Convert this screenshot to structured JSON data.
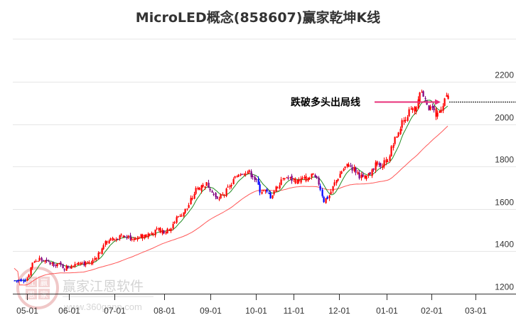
{
  "title": "MicroLED概念(858607)赢家乾坤K线",
  "annotation": {
    "label": "跌破多头出局线",
    "color": "#e8307a",
    "level": 2105
  },
  "watermark": {
    "brand": "赢家江恩软件",
    "url": "www.360gann.com",
    "seal_chars": [
      "江",
      "赢",
      "恩",
      "家"
    ]
  },
  "colors": {
    "up": "#ff0000",
    "down_blue": "#0000ff",
    "down_purple": "#800080",
    "ma_short": "#228b22",
    "ma_long": "#ff3b3b",
    "grid": "#e6e6e6",
    "axis": "#333333"
  },
  "chart_data": {
    "type": "candlestick",
    "title": "MicroLED概念(858607)赢家乾坤K线",
    "xlabel": "",
    "ylabel": "",
    "ylim": [
      1200,
      2400
    ],
    "y_ticks": [
      1200,
      1400,
      1600,
      1800,
      2000,
      2200
    ],
    "x_ticks": [
      "05-01",
      "06-01",
      "07-01",
      "08-01",
      "09-01",
      "10-01",
      "11-01",
      "12-01",
      "01-01",
      "02-01",
      "03-01"
    ],
    "grid": true,
    "legend": null,
    "annotations": [
      {
        "text": "跌破多头出局线",
        "type": "horizontal-arrow",
        "y": 2105
      }
    ],
    "series_close_approx": [
      {
        "date": "04-20",
        "close": 1262
      },
      {
        "date": "05-01",
        "close": 1275
      },
      {
        "date": "05-10",
        "close": 1360
      },
      {
        "date": "05-20",
        "close": 1345
      },
      {
        "date": "06-01",
        "close": 1322
      },
      {
        "date": "06-15",
        "close": 1345
      },
      {
        "date": "07-01",
        "close": 1420
      },
      {
        "date": "07-15",
        "close": 1470
      },
      {
        "date": "08-01",
        "close": 1490
      },
      {
        "date": "08-15",
        "close": 1560
      },
      {
        "date": "09-01",
        "close": 1700
      },
      {
        "date": "09-10",
        "close": 1640
      },
      {
        "date": "10-01",
        "close": 1770
      },
      {
        "date": "10-10",
        "close": 1690
      },
      {
        "date": "11-01",
        "close": 1745
      },
      {
        "date": "11-20",
        "close": 1720
      },
      {
        "date": "12-01",
        "close": 1640
      },
      {
        "date": "12-10",
        "close": 1800
      },
      {
        "date": "12-25",
        "close": 1740
      },
      {
        "date": "01-01",
        "close": 1810
      },
      {
        "date": "01-15",
        "close": 1960
      },
      {
        "date": "01-25",
        "close": 2060
      },
      {
        "date": "02-01",
        "close": 2150
      },
      {
        "date": "02-05",
        "close": 2030
      },
      {
        "date": "02-10",
        "close": 2060
      },
      {
        "date": "02-15",
        "close": 2130
      },
      {
        "date": "02-18",
        "close": 2105
      }
    ]
  }
}
